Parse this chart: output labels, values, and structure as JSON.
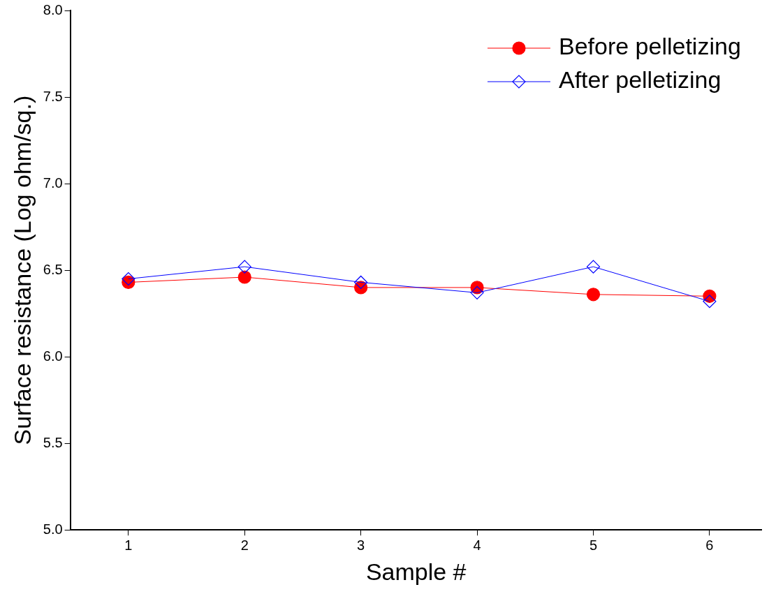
{
  "chart_data": {
    "type": "line",
    "xlabel": "Sample #",
    "ylabel": "Surface resistance (Log ohm/sq.)",
    "x": [
      1,
      2,
      3,
      4,
      5,
      6
    ],
    "series": [
      {
        "name": "Before pelletizing",
        "color": "#ff0000",
        "marker": "circle",
        "values": [
          6.43,
          6.46,
          6.4,
          6.4,
          6.36,
          6.35
        ]
      },
      {
        "name": "After pelletizing",
        "color": "#0000ff",
        "marker": "diamond",
        "values": [
          6.45,
          6.52,
          6.43,
          6.37,
          6.52,
          6.32
        ]
      }
    ],
    "xlim": [
      0.5,
      6.45
    ],
    "xticks": [
      1,
      2,
      3,
      4,
      5,
      6
    ],
    "ylim": [
      5.0,
      8.0
    ],
    "yticks": [
      {
        "value": 5,
        "label": "5.0"
      },
      {
        "value": 5.5,
        "label": "5.5"
      },
      {
        "value": 6,
        "label": "6.0"
      },
      {
        "value": 6.5,
        "label": "6.5"
      },
      {
        "value": 7,
        "label": "7.0"
      },
      {
        "value": 7.5,
        "label": "7.5"
      },
      {
        "value": 8,
        "label": "8.0"
      }
    ],
    "grid": false,
    "legend": "top right",
    "line_style": "solid"
  }
}
